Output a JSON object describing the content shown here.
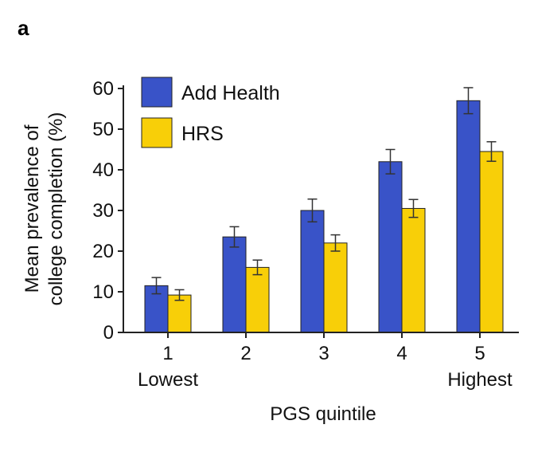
{
  "panel_label": "a",
  "colors": {
    "add_health": "#3953c8",
    "hrs": "#f8cf08",
    "stroke": "#222222"
  },
  "chart_data": {
    "type": "bar",
    "categories": [
      "1",
      "2",
      "3",
      "4",
      "5"
    ],
    "category_sublabels": [
      "Lowest",
      "",
      "",
      "",
      "Highest"
    ],
    "series": [
      {
        "name": "Add Health",
        "values": [
          11.5,
          23.5,
          30,
          42,
          57
        ],
        "error": [
          2.0,
          2.5,
          2.8,
          3.0,
          3.2
        ]
      },
      {
        "name": "HRS",
        "values": [
          9.2,
          16,
          22,
          30.5,
          44.5
        ],
        "error": [
          1.3,
          1.8,
          2.0,
          2.2,
          2.4
        ]
      }
    ],
    "title": "",
    "xlabel": "PGS quintile",
    "ylabel_lines": [
      "Mean prevalence of",
      "college completion (%)"
    ],
    "ylim": [
      0,
      62
    ],
    "yticks": [
      0,
      10,
      20,
      30,
      40,
      50,
      60
    ],
    "grid": false,
    "legend_position": "top-left"
  }
}
